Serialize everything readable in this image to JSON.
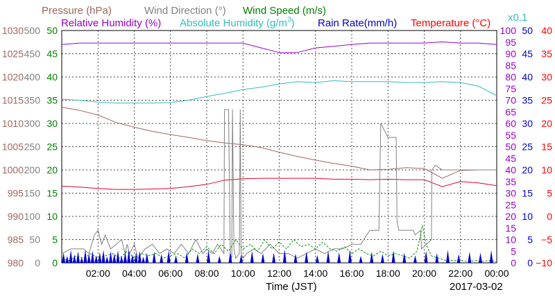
{
  "chart_data": {
    "type": "line",
    "date": "2017-03-02",
    "xlabel": "Time (JST)",
    "x_ticks": [
      "02:00",
      "04:00",
      "06:00",
      "08:00",
      "10:00",
      "12:00",
      "14:00",
      "16:00",
      "18:00",
      "20:00",
      "22:00",
      "00:00"
    ],
    "grid": true,
    "legend_placement": "top",
    "legend": {
      "pressure": "Pressure (hPa)",
      "wind_direction": "Wind Direction (°)",
      "wind_speed": "Wind Speed (m/s)",
      "relative_humidity": "Relative Humidity (%)",
      "absolute_humidity": "Absolute Humidity (g/m",
      "absolute_humidity_sup": "3",
      "absolute_humidity_close": ")",
      "rain_rate": "Rain Rate(mm/h)",
      "temperature": "Temperature (°C)",
      "scale_note": "x0.1"
    },
    "axes": {
      "pressure": {
        "ticks": [
          "1030",
          "1025",
          "1020",
          "1015",
          "1010",
          "1005",
          "1000",
          "995",
          "990",
          "985",
          "980"
        ],
        "ylim": [
          980,
          1030
        ],
        "color": "#a0655f"
      },
      "wind_direction": {
        "ticks": [
          "500",
          "450",
          "400",
          "350",
          "300",
          "250",
          "200",
          "150",
          "100",
          "50",
          "0"
        ],
        "ylim": [
          0,
          500
        ],
        "color": "#808080"
      },
      "wind_speed": {
        "ticks": [
          "50",
          "45",
          "40",
          "35",
          "30",
          "25",
          "20",
          "15",
          "10",
          "5",
          "0"
        ],
        "ylim": [
          0,
          50
        ],
        "color": "#008000"
      },
      "humidity": {
        "ticks": [
          "100",
          "95",
          "90",
          "85",
          "80",
          "75",
          "70",
          "65",
          "60",
          "55",
          "50",
          "45",
          "40",
          "35",
          "30",
          "25",
          "20",
          "15",
          "10",
          "5",
          "0"
        ],
        "ylim": [
          0,
          100
        ],
        "color": "#9900cc"
      },
      "rain_rate": {
        "ticks": [
          "50",
          "45",
          "40",
          "35",
          "30",
          "25",
          "20",
          "15",
          "10",
          "5",
          "0"
        ],
        "ylim": [
          0,
          50
        ],
        "color": "#0000cc"
      },
      "temperature": {
        "ticks": [
          "40",
          "35",
          "30",
          "25",
          "20",
          "15",
          "10",
          "5",
          "0",
          "−5",
          "−10"
        ],
        "ylim": [
          -10,
          40
        ],
        "color": "#ff0000"
      }
    },
    "series": [
      {
        "key": "pressure",
        "color": "#a0655f",
        "x": [
          0,
          1,
          2,
          3,
          4,
          5,
          6,
          7,
          8,
          9,
          10,
          11,
          12,
          13,
          14,
          15,
          16,
          17,
          18,
          19,
          20,
          21,
          22,
          23,
          24
        ],
        "y": [
          1013.5,
          1012.8,
          1011.8,
          1010.2,
          1009.2,
          1008.3,
          1007.6,
          1007.0,
          1006.3,
          1005.8,
          1005.4,
          1004.8,
          1003.8,
          1002.9,
          1002.1,
          1001.4,
          1000.8,
          1000.0,
          1000.1,
          1000.5,
          1000.3,
          998.2,
          999.9,
          1000.0,
          1000.0
        ]
      },
      {
        "key": "relative_humidity",
        "color": "#9900cc",
        "x": [
          0,
          1,
          2,
          3,
          4,
          5,
          6,
          7,
          8,
          9,
          10,
          11,
          12,
          13,
          14,
          15,
          16,
          17,
          18,
          19,
          20,
          21,
          22,
          23,
          24
        ],
        "y": [
          94,
          94.6,
          94.6,
          94.6,
          94.6,
          94.6,
          94.6,
          94.6,
          94.6,
          94.6,
          94.6,
          92.5,
          90.5,
          90.5,
          92.5,
          93.2,
          94,
          94.6,
          94.6,
          94.6,
          94.6,
          95.1,
          94.6,
          94.6,
          94
        ]
      },
      {
        "key": "absolute_humidity",
        "color": "#33bbbb",
        "x": [
          0,
          1,
          2,
          3,
          4,
          5,
          6,
          7,
          8,
          9,
          10,
          11,
          12,
          13,
          14,
          15,
          16,
          17,
          18,
          19,
          20,
          21,
          22,
          23,
          24
        ],
        "y": [
          352,
          350,
          346,
          344,
          344,
          344,
          345,
          350,
          358,
          365,
          373,
          378,
          385,
          390,
          388,
          392,
          390,
          390,
          390,
          388,
          388,
          390,
          388,
          380,
          360
        ]
      },
      {
        "key": "temperature",
        "color": "#e4002b",
        "x": [
          0,
          1,
          2,
          3,
          4,
          5,
          6,
          7,
          8,
          9,
          10,
          11,
          12,
          13,
          14,
          15,
          16,
          17,
          18,
          19,
          20,
          21,
          22,
          23,
          24
        ],
        "y": [
          6.5,
          6.3,
          6.0,
          5.8,
          5.8,
          5.9,
          6.0,
          6.4,
          6.9,
          7.8,
          8.1,
          8.2,
          8.2,
          8.2,
          8.2,
          8.0,
          8.0,
          7.9,
          8.0,
          7.9,
          7.9,
          6.4,
          7.5,
          7.2,
          6.6
        ]
      },
      {
        "key": "wind_direction",
        "color": "#808080",
        "x": [
          0,
          0.5,
          1.0,
          1.2,
          1.5,
          1.8,
          2.0,
          2.2,
          2.4,
          2.7,
          3.0,
          3.3,
          3.5,
          3.6,
          3.75,
          4.0,
          4.2,
          4.6,
          5.0,
          5.4,
          5.8,
          6.2,
          6.6,
          7.0,
          7.4,
          7.8,
          8.0,
          8.3,
          8.6,
          8.95,
          8.98,
          9.2,
          9.3,
          9.38,
          9.42,
          9.5,
          9.6,
          9.8,
          9.85,
          9.9,
          10.0,
          10.2,
          10.6,
          11.0,
          11.5,
          12.0,
          12.5,
          13.0,
          13.5,
          14.0,
          14.5,
          15.0,
          15.5,
          16.0,
          16.5,
          17.0,
          17.5,
          17.6,
          18.0,
          18.45,
          18.5,
          18.6,
          19.4,
          19.5,
          19.8,
          19.85,
          20.4,
          20.42,
          20.6,
          21.0,
          21.5,
          22.0,
          22.5,
          23.0,
          23.5,
          24.0
        ],
        "y": [
          20,
          30,
          30,
          30,
          20,
          60,
          70,
          40,
          60,
          30,
          40,
          50,
          20,
          40,
          20,
          40,
          10,
          30,
          40,
          20,
          30,
          20,
          40,
          20,
          50,
          20,
          30,
          20,
          40,
          20,
          330,
          330,
          20,
          10,
          330,
          30,
          10,
          20,
          330,
          20,
          10,
          20,
          30,
          20,
          40,
          20,
          20,
          10,
          20,
          30,
          20,
          30,
          30,
          40,
          40,
          70,
          70,
          300,
          270,
          270,
          90,
          70,
          70,
          60,
          70,
          30,
          50,
          200,
          210,
          200,
          200,
          200,
          200,
          200,
          200,
          200
        ]
      },
      {
        "key": "wind_speed",
        "color": "#009900",
        "x": [
          0,
          0.4,
          0.8,
          1.2,
          1.6,
          2.0,
          2.4,
          2.8,
          3.2,
          3.6,
          4.0,
          4.4,
          4.8,
          5.2,
          5.6,
          6.0,
          6.4,
          6.8,
          7.2,
          7.6,
          8.0,
          8.4,
          8.8,
          9.2,
          9.6,
          10.0,
          10.4,
          10.8,
          11.2,
          11.6,
          12.0,
          12.4,
          12.8,
          13.2,
          13.6,
          14.0,
          14.4,
          14.8,
          15.2,
          15.6,
          16.0,
          16.4,
          16.8,
          17.2,
          17.6,
          18.0,
          18.4,
          18.8,
          19.2,
          19.6,
          19.9,
          20.1,
          20.4,
          20.8,
          21.2,
          21.6,
          22.0,
          22.4,
          22.8,
          23.2,
          23.6,
          24.0
        ],
        "y": [
          1,
          0.5,
          1.5,
          1,
          2,
          1,
          1.5,
          2,
          1,
          2.5,
          1,
          2,
          1.5,
          2,
          1,
          1.5,
          2,
          1,
          3,
          2,
          3.5,
          2,
          4,
          2.5,
          5,
          3,
          4,
          2.5,
          5,
          3,
          4.5,
          3,
          5,
          3.5,
          4,
          3,
          4.5,
          3,
          2.5,
          3.5,
          2,
          3,
          2,
          1.5,
          2.5,
          1.5,
          2,
          1.5,
          1,
          2.5,
          8,
          4,
          1.5,
          1,
          0.5,
          0.5,
          0.5,
          0.3,
          0.5,
          0.3,
          0.5,
          0.3
        ]
      },
      {
        "key": "rain_rate",
        "color": "#0000cc",
        "type": "spikes",
        "x": [
          0.1,
          0.3,
          0.5,
          0.7,
          0.9,
          1.1,
          1.3,
          1.5,
          1.7,
          1.9,
          2.1,
          2.3,
          2.5,
          2.7,
          2.9,
          3.1,
          3.3,
          3.5,
          3.7,
          3.9,
          4.1,
          4.3,
          4.5,
          4.7,
          5.1,
          5.5,
          5.9,
          6.3,
          6.9,
          7.5,
          8.1,
          8.7,
          9.3,
          9.9,
          10.5,
          11.1,
          11.7,
          12.3,
          12.9,
          13.5,
          14.1,
          14.7,
          15.3,
          15.9,
          16.5,
          17.1,
          17.7,
          18.3,
          18.9,
          19.5,
          20.1,
          20.7,
          21.3,
          21.9,
          22.5,
          23.1,
          23.7
        ],
        "y": [
          2.2,
          1.5,
          2.8,
          1.8,
          2.5,
          1.2,
          2.9,
          2.0,
          2.6,
          1.6,
          2.3,
          2.8,
          1.4,
          2.5,
          2.0,
          2.7,
          1.5,
          2.4,
          2.9,
          1.8,
          2.2,
          2.6,
          1.3,
          2.1,
          2.4,
          1.9,
          2.7,
          1.6,
          2.3,
          2.0,
          2.8,
          1.5,
          2.4,
          1.8,
          2.6,
          2.1,
          2.2,
          2.9,
          2.0,
          2.5,
          1.7,
          2.6,
          2.3,
          2.8,
          1.5,
          2.4,
          1.9,
          2.7,
          2.2,
          1.6,
          2.6,
          2.1,
          2.8,
          1.9,
          2.4,
          2.2,
          2.7
        ]
      }
    ]
  }
}
